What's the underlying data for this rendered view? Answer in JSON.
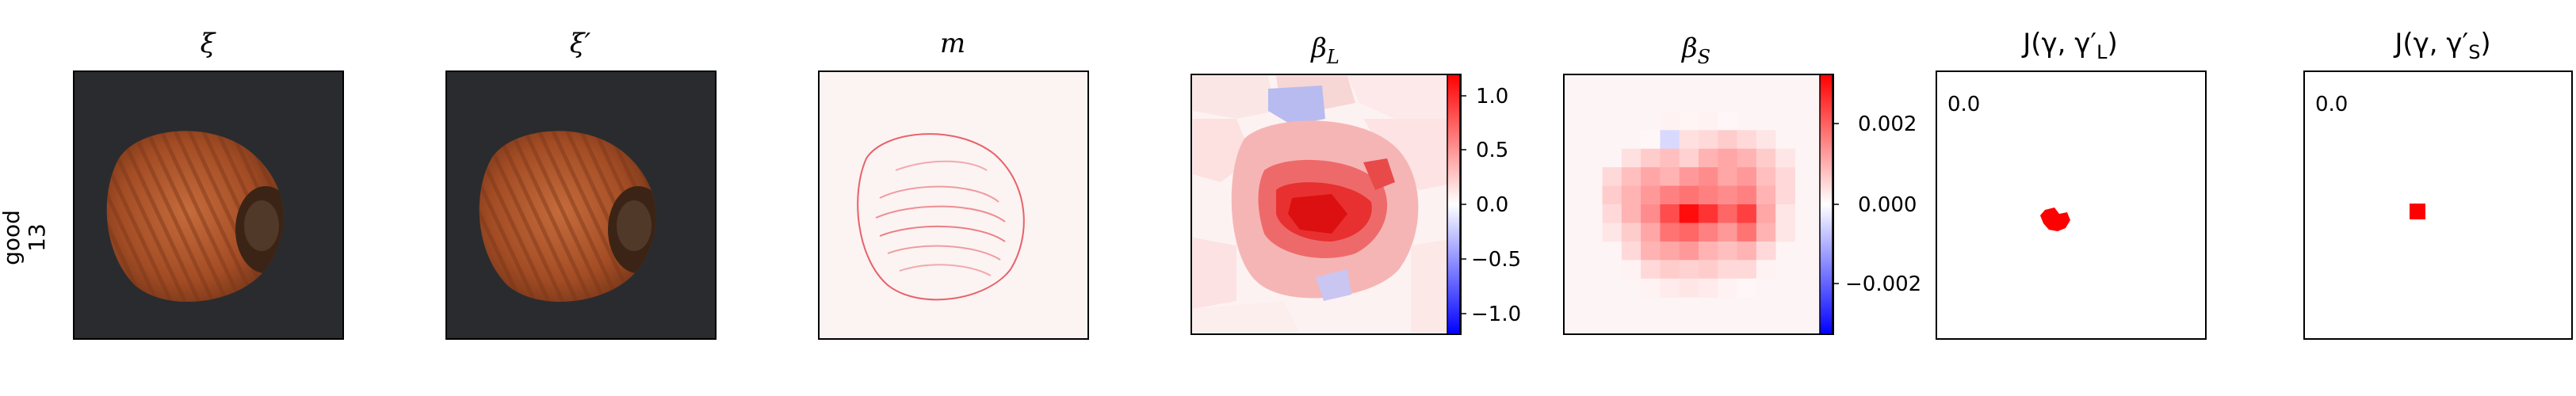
{
  "row_label": {
    "line1": "good",
    "line2": "13"
  },
  "panels": [
    {
      "id": "xi",
      "title": "ξ",
      "kind": "photo"
    },
    {
      "id": "xi_prime",
      "title": "ξ′",
      "kind": "photo"
    },
    {
      "id": "m",
      "title": "m",
      "kind": "mask"
    },
    {
      "id": "beta_L",
      "title_main": "β",
      "title_sub": "L",
      "kind": "heatmap_superpixel"
    },
    {
      "id": "beta_S",
      "title_main": "β",
      "title_sub": "S",
      "kind": "heatmap_grid"
    },
    {
      "id": "J_L",
      "title_main": "J(γ, γ′",
      "title_sub": "L",
      "title_end": ")",
      "kind": "binary",
      "value_label": "0.0"
    },
    {
      "id": "J_S",
      "title_main": "J(γ, γ′",
      "title_sub": "S",
      "title_end": ")",
      "kind": "binary",
      "value_label": "0.0"
    }
  ],
  "colorbars": [
    {
      "id": "cbar_L",
      "ticks": [
        "1.0",
        "0.5",
        "0.0",
        "−0.5",
        "−1.0"
      ]
    },
    {
      "id": "cbar_S",
      "ticks": [
        "0.002",
        "0.000",
        "−0.002"
      ]
    }
  ],
  "colors": {
    "positive": "#e00000",
    "negative": "#1010e0",
    "neutral": "#ffffff",
    "axis": "#000000",
    "photo_bg": "#2a2b2e"
  }
}
